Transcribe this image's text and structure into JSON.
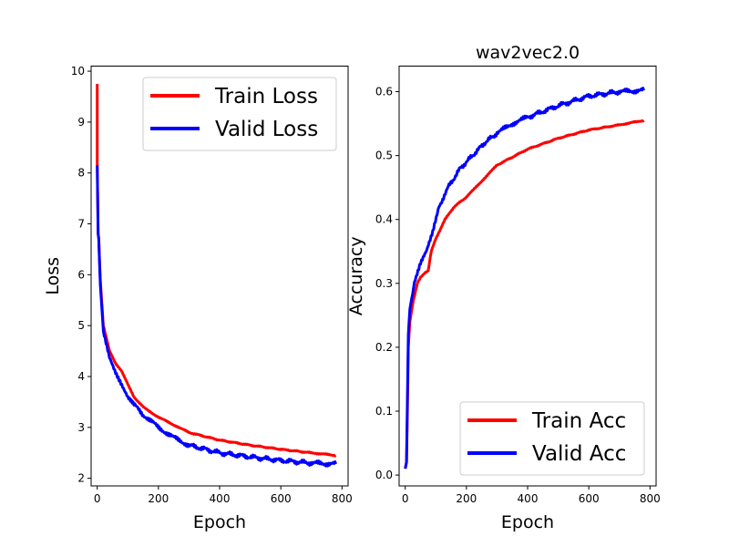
{
  "chart_data": [
    {
      "type": "line",
      "title": "",
      "xlabel": "Epoch",
      "ylabel": "Loss",
      "xlim": [
        -20,
        820
      ],
      "ylim": [
        1.85,
        10.1
      ],
      "xticks": [
        0,
        200,
        400,
        600,
        800
      ],
      "yticks": [
        2,
        3,
        4,
        5,
        6,
        7,
        8,
        9,
        10
      ],
      "legend": "top-right",
      "grid": false,
      "series": [
        {
          "name": "Train Loss",
          "color": "#ff0000",
          "x": [
            0,
            0,
            3,
            5,
            10,
            20,
            40,
            60,
            80,
            100,
            120,
            150,
            200,
            250,
            300,
            400,
            500,
            600,
            700,
            780
          ],
          "y": [
            9.75,
            8.2,
            6.8,
            6.7,
            5.9,
            5.0,
            4.5,
            4.25,
            4.1,
            3.85,
            3.6,
            3.4,
            3.2,
            3.05,
            2.9,
            2.75,
            2.65,
            2.57,
            2.5,
            2.45
          ]
        },
        {
          "name": "Valid Loss",
          "color": "#0000ff",
          "x": [
            0,
            3,
            5,
            10,
            20,
            40,
            60,
            80,
            100,
            120,
            150,
            200,
            250,
            300,
            400,
            500,
            600,
            700,
            780
          ],
          "y": [
            8.15,
            6.8,
            6.7,
            5.8,
            4.9,
            4.4,
            4.1,
            3.85,
            3.6,
            3.45,
            3.25,
            3.0,
            2.8,
            2.65,
            2.5,
            2.42,
            2.35,
            2.3,
            2.28
          ]
        }
      ]
    },
    {
      "type": "line",
      "title": "wav2vec2.0",
      "xlabel": "Epoch",
      "ylabel": "Accuracy",
      "xlim": [
        -20,
        820
      ],
      "ylim": [
        -0.017,
        0.64
      ],
      "xticks": [
        0,
        200,
        400,
        600,
        800
      ],
      "yticks": [
        0.0,
        0.1,
        0.2,
        0.3,
        0.4,
        0.5,
        0.6
      ],
      "legend": "bottom-right",
      "grid": false,
      "series": [
        {
          "name": "Train Acc",
          "color": "#ff0000",
          "x": [
            0,
            4,
            7,
            10,
            15,
            25,
            40,
            50,
            75,
            85,
            100,
            130,
            160,
            200,
            250,
            300,
            400,
            500,
            600,
            700,
            780
          ],
          "y": [
            0.01,
            0.02,
            0.1,
            0.2,
            0.24,
            0.27,
            0.3,
            0.31,
            0.32,
            0.35,
            0.37,
            0.4,
            0.42,
            0.435,
            0.46,
            0.485,
            0.51,
            0.527,
            0.54,
            0.548,
            0.555
          ]
        },
        {
          "name": "Valid Acc",
          "color": "#0000ff",
          "x": [
            0,
            4,
            7,
            10,
            15,
            30,
            50,
            70,
            90,
            110,
            140,
            180,
            220,
            260,
            300,
            350,
            400,
            500,
            600,
            700,
            780
          ],
          "y": [
            0.01,
            0.02,
            0.12,
            0.22,
            0.26,
            0.3,
            0.33,
            0.35,
            0.38,
            0.42,
            0.45,
            0.48,
            0.5,
            0.52,
            0.535,
            0.55,
            0.56,
            0.578,
            0.593,
            0.6,
            0.602
          ]
        }
      ]
    }
  ]
}
